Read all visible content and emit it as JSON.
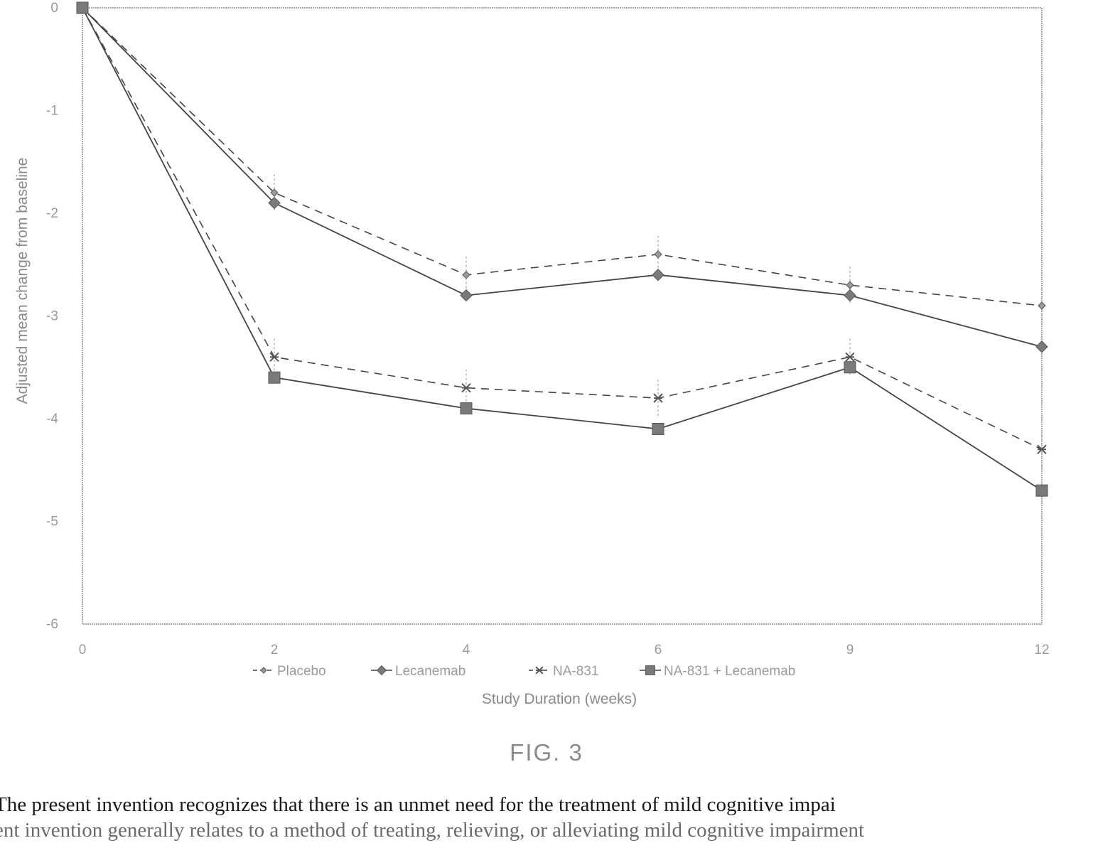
{
  "chart_data": {
    "type": "line",
    "x": [
      0,
      2,
      4,
      6,
      9,
      12
    ],
    "x_tick_labels": [
      "0",
      "2",
      "4",
      "6",
      "9",
      "12"
    ],
    "xlabel": "Study Duration (weeks)",
    "ylabel": "Adjusted mean change from baseline",
    "ylim": [
      -6,
      0
    ],
    "y_ticks": [
      0,
      -1,
      -2,
      -3,
      -4,
      -5,
      -6
    ],
    "y_tick_labels": [
      "0",
      "-1",
      "-2",
      "-3",
      "-4",
      "-5",
      "-6"
    ],
    "grid": false,
    "legend_position": "bottom",
    "series": [
      {
        "name": "Placebo",
        "values": [
          0,
          -1.8,
          -2.6,
          -2.4,
          -2.7,
          -2.9
        ],
        "marker": "diamond-small",
        "dash": true,
        "error_bars": true
      },
      {
        "name": "Lecanemab",
        "values": [
          0,
          -1.9,
          -2.8,
          -2.6,
          -2.8,
          -3.3
        ],
        "marker": "diamond",
        "dash": false,
        "error_bars": false
      },
      {
        "name": "NA-831",
        "values": [
          0,
          -3.4,
          -3.7,
          -3.8,
          -3.4,
          -4.3
        ],
        "marker": "star",
        "dash": true,
        "error_bars": true
      },
      {
        "name": "NA-831 + Lecanemab",
        "values": [
          0,
          -3.6,
          -3.9,
          -4.1,
          -3.5,
          -4.7
        ],
        "marker": "square",
        "dash": false,
        "error_bars": false
      }
    ]
  },
  "caption": "FIG. 3",
  "body_text": {
    "line1": "The present invention recognizes that there is an unmet need for the treatment of mild cognitive impai",
    "line2": "ent invention generally relates to a method of treating, relieving, or alleviating mild cognitive impairment"
  },
  "colors": {
    "line": "#444444",
    "axis": "#aaaaaa",
    "marker": "#7a7a7a"
  }
}
